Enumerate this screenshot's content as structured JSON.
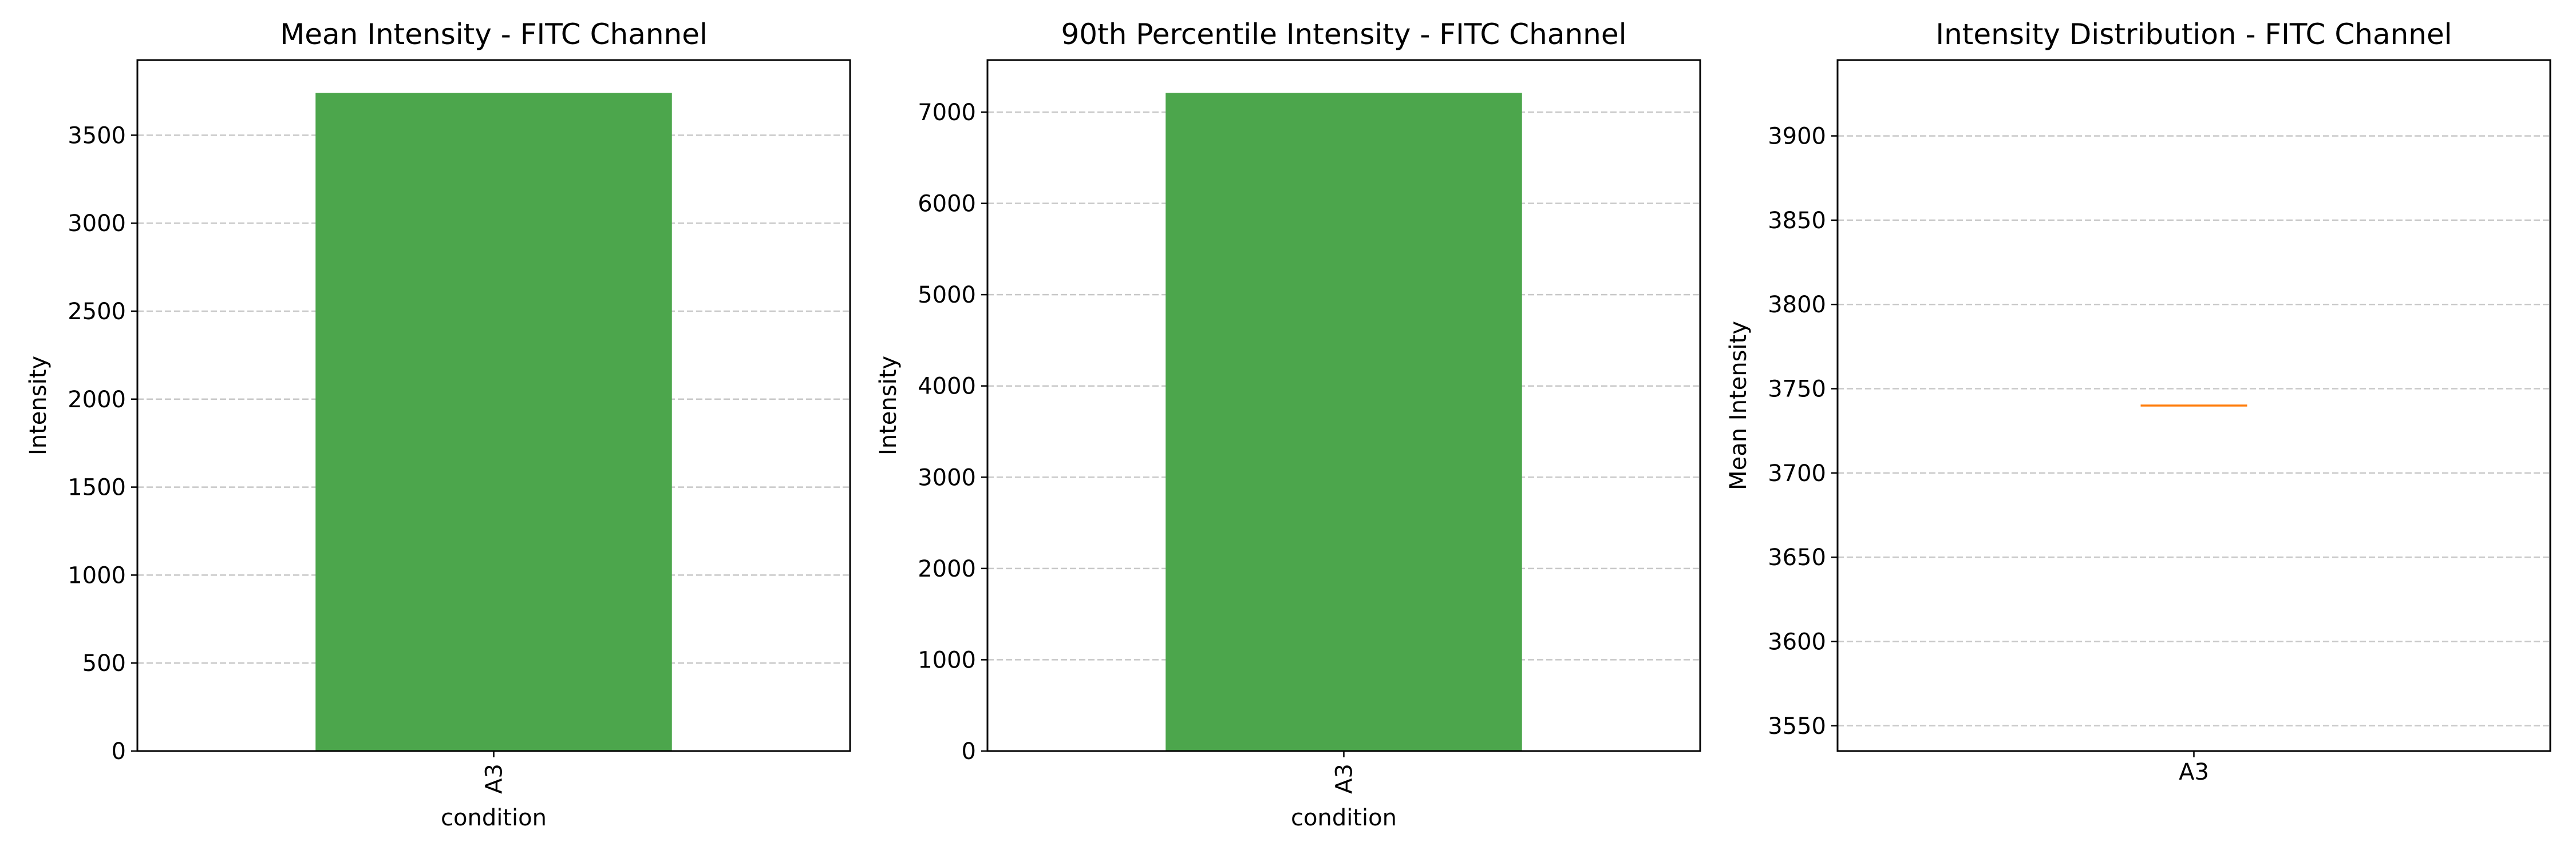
{
  "chart_data": [
    {
      "type": "bar",
      "title": "Mean Intensity - FITC Channel",
      "xlabel": "condition",
      "ylabel": "Intensity",
      "categories": [
        "A3"
      ],
      "values": [
        3740
      ],
      "ylim": [
        0,
        3927
      ],
      "yticks": [
        0,
        500,
        1000,
        1500,
        2000,
        2500,
        3000,
        3500
      ],
      "grid": "y, dashed",
      "bar_color": "#4ca64c"
    },
    {
      "type": "bar",
      "title": "90th Percentile Intensity - FITC Channel",
      "xlabel": "condition",
      "ylabel": "Intensity",
      "categories": [
        "A3"
      ],
      "values": [
        7210
      ],
      "ylim": [
        0,
        7570
      ],
      "yticks": [
        0,
        1000,
        2000,
        3000,
        4000,
        5000,
        6000,
        7000
      ],
      "grid": "y, dashed",
      "bar_color": "#4ca64c"
    },
    {
      "type": "box",
      "title": "Intensity Distribution - FITC Channel",
      "xlabel": "",
      "ylabel": "Mean Intensity",
      "categories": [
        "A3"
      ],
      "median": [
        3740
      ],
      "ylim": [
        3535,
        3945
      ],
      "yticks": [
        3550,
        3600,
        3650,
        3700,
        3750,
        3800,
        3850,
        3900
      ],
      "grid": "y, dashed",
      "median_color": "#ff7f0e"
    }
  ]
}
